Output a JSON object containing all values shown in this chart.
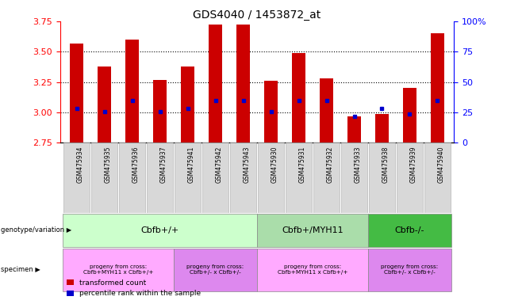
{
  "title": "GDS4040 / 1453872_at",
  "samples": [
    "GSM475934",
    "GSM475935",
    "GSM475936",
    "GSM475937",
    "GSM475941",
    "GSM475942",
    "GSM475943",
    "GSM475930",
    "GSM475931",
    "GSM475932",
    "GSM475933",
    "GSM475938",
    "GSM475939",
    "GSM475940"
  ],
  "bar_tops": [
    3.57,
    3.38,
    3.6,
    3.27,
    3.38,
    3.72,
    3.72,
    3.26,
    3.49,
    3.28,
    2.97,
    2.99,
    3.2,
    3.65
  ],
  "bar_bottom": 2.75,
  "blue_vals": [
    3.03,
    3.01,
    3.1,
    3.01,
    3.03,
    3.1,
    3.1,
    3.01,
    3.1,
    3.1,
    2.97,
    3.03,
    2.99,
    3.1
  ],
  "ylim_left": [
    2.75,
    3.75
  ],
  "ylim_right": [
    0,
    100
  ],
  "yticks_left": [
    2.75,
    3.0,
    3.25,
    3.5,
    3.75
  ],
  "yticks_right": [
    0,
    25,
    50,
    75,
    100
  ],
  "bar_color": "#cc0000",
  "blue_color": "#0000cc",
  "geno_data": [
    {
      "label": "Cbfb+/+",
      "start": 0,
      "end": 7,
      "color": "#ccffcc"
    },
    {
      "label": "Cbfb+/MYH11",
      "start": 7,
      "end": 11,
      "color": "#aaddaa"
    },
    {
      "label": "Cbfb-/-",
      "start": 11,
      "end": 14,
      "color": "#44bb44"
    }
  ],
  "spec_data": [
    {
      "label": "progeny from cross:\nCbfb+MYH11 x Cbfb+/+",
      "start": 0,
      "end": 4,
      "color": "#ffaaff"
    },
    {
      "label": "progeny from cross:\nCbfb+/- x Cbfb+/-",
      "start": 4,
      "end": 7,
      "color": "#dd88ee"
    },
    {
      "label": "progeny from cross:\nCbfb+MYH11 x Cbfb+/+",
      "start": 7,
      "end": 11,
      "color": "#ffaaff"
    },
    {
      "label": "progeny from cross:\nCbfb+/- x Cbfb+/-",
      "start": 11,
      "end": 14,
      "color": "#dd88ee"
    }
  ]
}
